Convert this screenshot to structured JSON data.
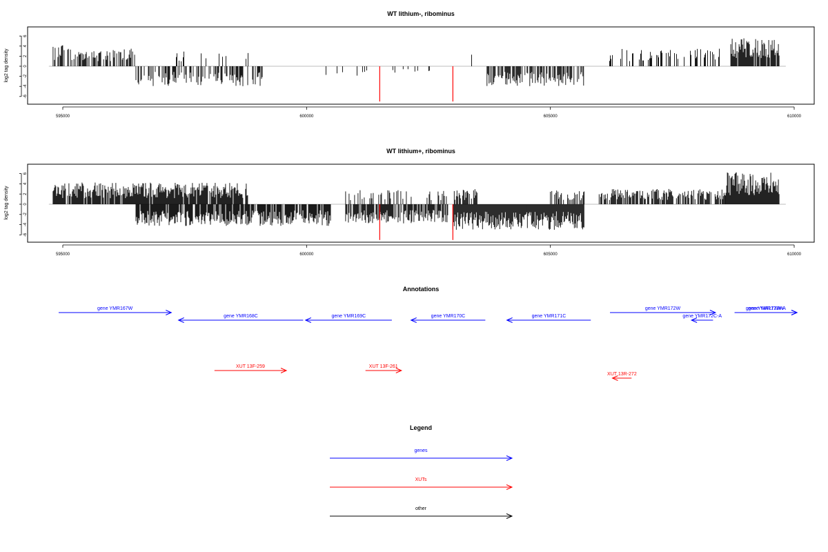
{
  "chart_data": [
    {
      "type": "bar",
      "title": "WT lithium-, ribominus",
      "ylabel": "log2 tag density",
      "xlabel": "",
      "xlim": [
        594800,
        609800
      ],
      "ylim": [
        -7,
        7
      ],
      "x_ticks": [
        595000,
        600000,
        605000,
        610000
      ],
      "y_ticks": [
        6,
        4,
        2,
        0,
        -2,
        -4,
        -6
      ],
      "highlight_bars": [
        {
          "x": 601500,
          "y": -7,
          "color": "#ff0000"
        },
        {
          "x": 603000,
          "y": -7,
          "color": "#ff0000"
        }
      ],
      "segments": [
        {
          "start": 594800,
          "end": 595050,
          "density": 0.4,
          "sign": 1,
          "amp": 3.5
        },
        {
          "start": 595100,
          "end": 596500,
          "density": 0.55,
          "sign": 1,
          "amp": 2.8
        },
        {
          "start": 596500,
          "end": 599100,
          "density": 0.45,
          "sign": -1,
          "amp": 3.2
        },
        {
          "start": 597300,
          "end": 598900,
          "density": 0.12,
          "sign": 1,
          "amp": 2.5
        },
        {
          "start": 600100,
          "end": 601300,
          "density": 0.08,
          "sign": -1,
          "amp": 1.6
        },
        {
          "start": 601400,
          "end": 602700,
          "density": 0.06,
          "sign": -1,
          "amp": 1.2
        },
        {
          "start": 603300,
          "end": 603500,
          "density": 0.15,
          "sign": 1,
          "amp": 2.6
        },
        {
          "start": 603700,
          "end": 605700,
          "density": 0.6,
          "sign": -1,
          "amp": 3.2
        },
        {
          "start": 606200,
          "end": 608500,
          "density": 0.35,
          "sign": 1,
          "amp": 2.8
        },
        {
          "start": 608700,
          "end": 609700,
          "density": 0.85,
          "sign": 1,
          "amp": 4.6
        }
      ]
    },
    {
      "type": "bar",
      "title": "WT lithium+, ribominus",
      "ylabel": "log2 tag density",
      "xlabel": "",
      "xlim": [
        594800,
        609800
      ],
      "ylim": [
        -7,
        7
      ],
      "x_ticks": [
        595000,
        600000,
        605000,
        610000
      ],
      "y_ticks": [
        6,
        4,
        2,
        0,
        -2,
        -4,
        -6
      ],
      "highlight_bars": [
        {
          "x": 601500,
          "y": -7,
          "color": "#ff0000"
        },
        {
          "x": 603000,
          "y": -7,
          "color": "#ff0000"
        }
      ],
      "segments": [
        {
          "start": 594800,
          "end": 598800,
          "density": 0.9,
          "sign": 1,
          "amp": 3.4
        },
        {
          "start": 596500,
          "end": 600500,
          "density": 0.85,
          "sign": -1,
          "amp": 3.4
        },
        {
          "start": 600800,
          "end": 602900,
          "density": 0.75,
          "sign": -1,
          "amp": 3.0
        },
        {
          "start": 600800,
          "end": 602900,
          "density": 0.25,
          "sign": 1,
          "amp": 2.2
        },
        {
          "start": 603000,
          "end": 603500,
          "density": 0.5,
          "sign": 1,
          "amp": 2.4
        },
        {
          "start": 603000,
          "end": 605700,
          "density": 1.0,
          "sign": -1,
          "amp": 4.0
        },
        {
          "start": 605000,
          "end": 605700,
          "density": 0.5,
          "sign": 1,
          "amp": 2.2
        },
        {
          "start": 606000,
          "end": 608600,
          "density": 0.7,
          "sign": 1,
          "amp": 2.4
        },
        {
          "start": 608600,
          "end": 609700,
          "density": 1.0,
          "sign": 1,
          "amp": 5.0
        }
      ]
    }
  ],
  "annotations": {
    "title": "Annotations",
    "items": [
      {
        "label": "gene YMR167W",
        "start": 594800,
        "end": 599500,
        "strand": "+",
        "type": "gene",
        "row": 0
      },
      {
        "label": "gene YMR168C",
        "start": 599800,
        "end": 605000,
        "strand": "-",
        "type": "gene",
        "row": 1
      },
      {
        "label": "gene YMR169C",
        "start": 605100,
        "end": 608700,
        "strand": "-",
        "type": "gene",
        "row": 1
      },
      {
        "label": "gene YMR170C",
        "start": 609500,
        "end": 612600,
        "strand": "-",
        "type": "gene",
        "row": 1
      },
      {
        "label": "gene YMR171C",
        "start": 613500,
        "end": 617000,
        "strand": "-",
        "type": "gene",
        "row": 1
      },
      {
        "label": "gene YMR172W",
        "start": 617800,
        "end": 622200,
        "strand": "+",
        "type": "gene",
        "row": 0
      },
      {
        "label": "gene YMR172C-A",
        "start": 621200,
        "end": 622100,
        "strand": "-",
        "type": "gene",
        "row": 1
      },
      {
        "label": "gene YMR173W",
        "start": 623000,
        "end": 625600,
        "strand": "+",
        "type": "gene",
        "row": 0
      },
      {
        "label": "gene YMR173W-A",
        "start": 623000,
        "end": 625600,
        "strand": "+",
        "type": "gene",
        "row": 0
      },
      {
        "label": "XUT 13F-259",
        "start": 601300,
        "end": 604300,
        "strand": "+",
        "type": "xut",
        "row": 3
      },
      {
        "label": "XUT 13F-261",
        "start": 607600,
        "end": 609100,
        "strand": "+",
        "type": "xut",
        "row": 3
      },
      {
        "label": "XUT 13R-272",
        "start": 617900,
        "end": 618700,
        "strand": "-",
        "type": "xut",
        "row": 4
      }
    ]
  },
  "legend": {
    "title": "Legend",
    "items": [
      {
        "label": "genes",
        "color": "#0000ff"
      },
      {
        "label": "XUTs",
        "color": "#ff0000"
      },
      {
        "label": "other",
        "color": "#000000"
      }
    ]
  },
  "colors": {
    "gene": "#0000ff",
    "xut": "#ff0000",
    "other": "#000000",
    "baseline": "#bebebe"
  }
}
